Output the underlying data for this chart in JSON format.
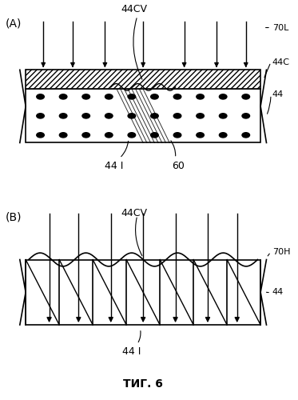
{
  "fig_label": "ΤИГ. 6",
  "panel_A_label": "(А)",
  "panel_B_label": "(В)",
  "label_44CV_A": "44CV",
  "label_70L": "70L",
  "label_44C": "44C",
  "label_44": "44",
  "label_44I_A": "44 I",
  "label_60": "60",
  "label_44CV_B": "44CV",
  "label_70H": "70H",
  "label_44_B": "44",
  "label_44I_B": "44 I",
  "bg_color": "#ffffff",
  "line_color": "#000000",
  "hatch_color": "#000000",
  "dot_color": "#000000"
}
